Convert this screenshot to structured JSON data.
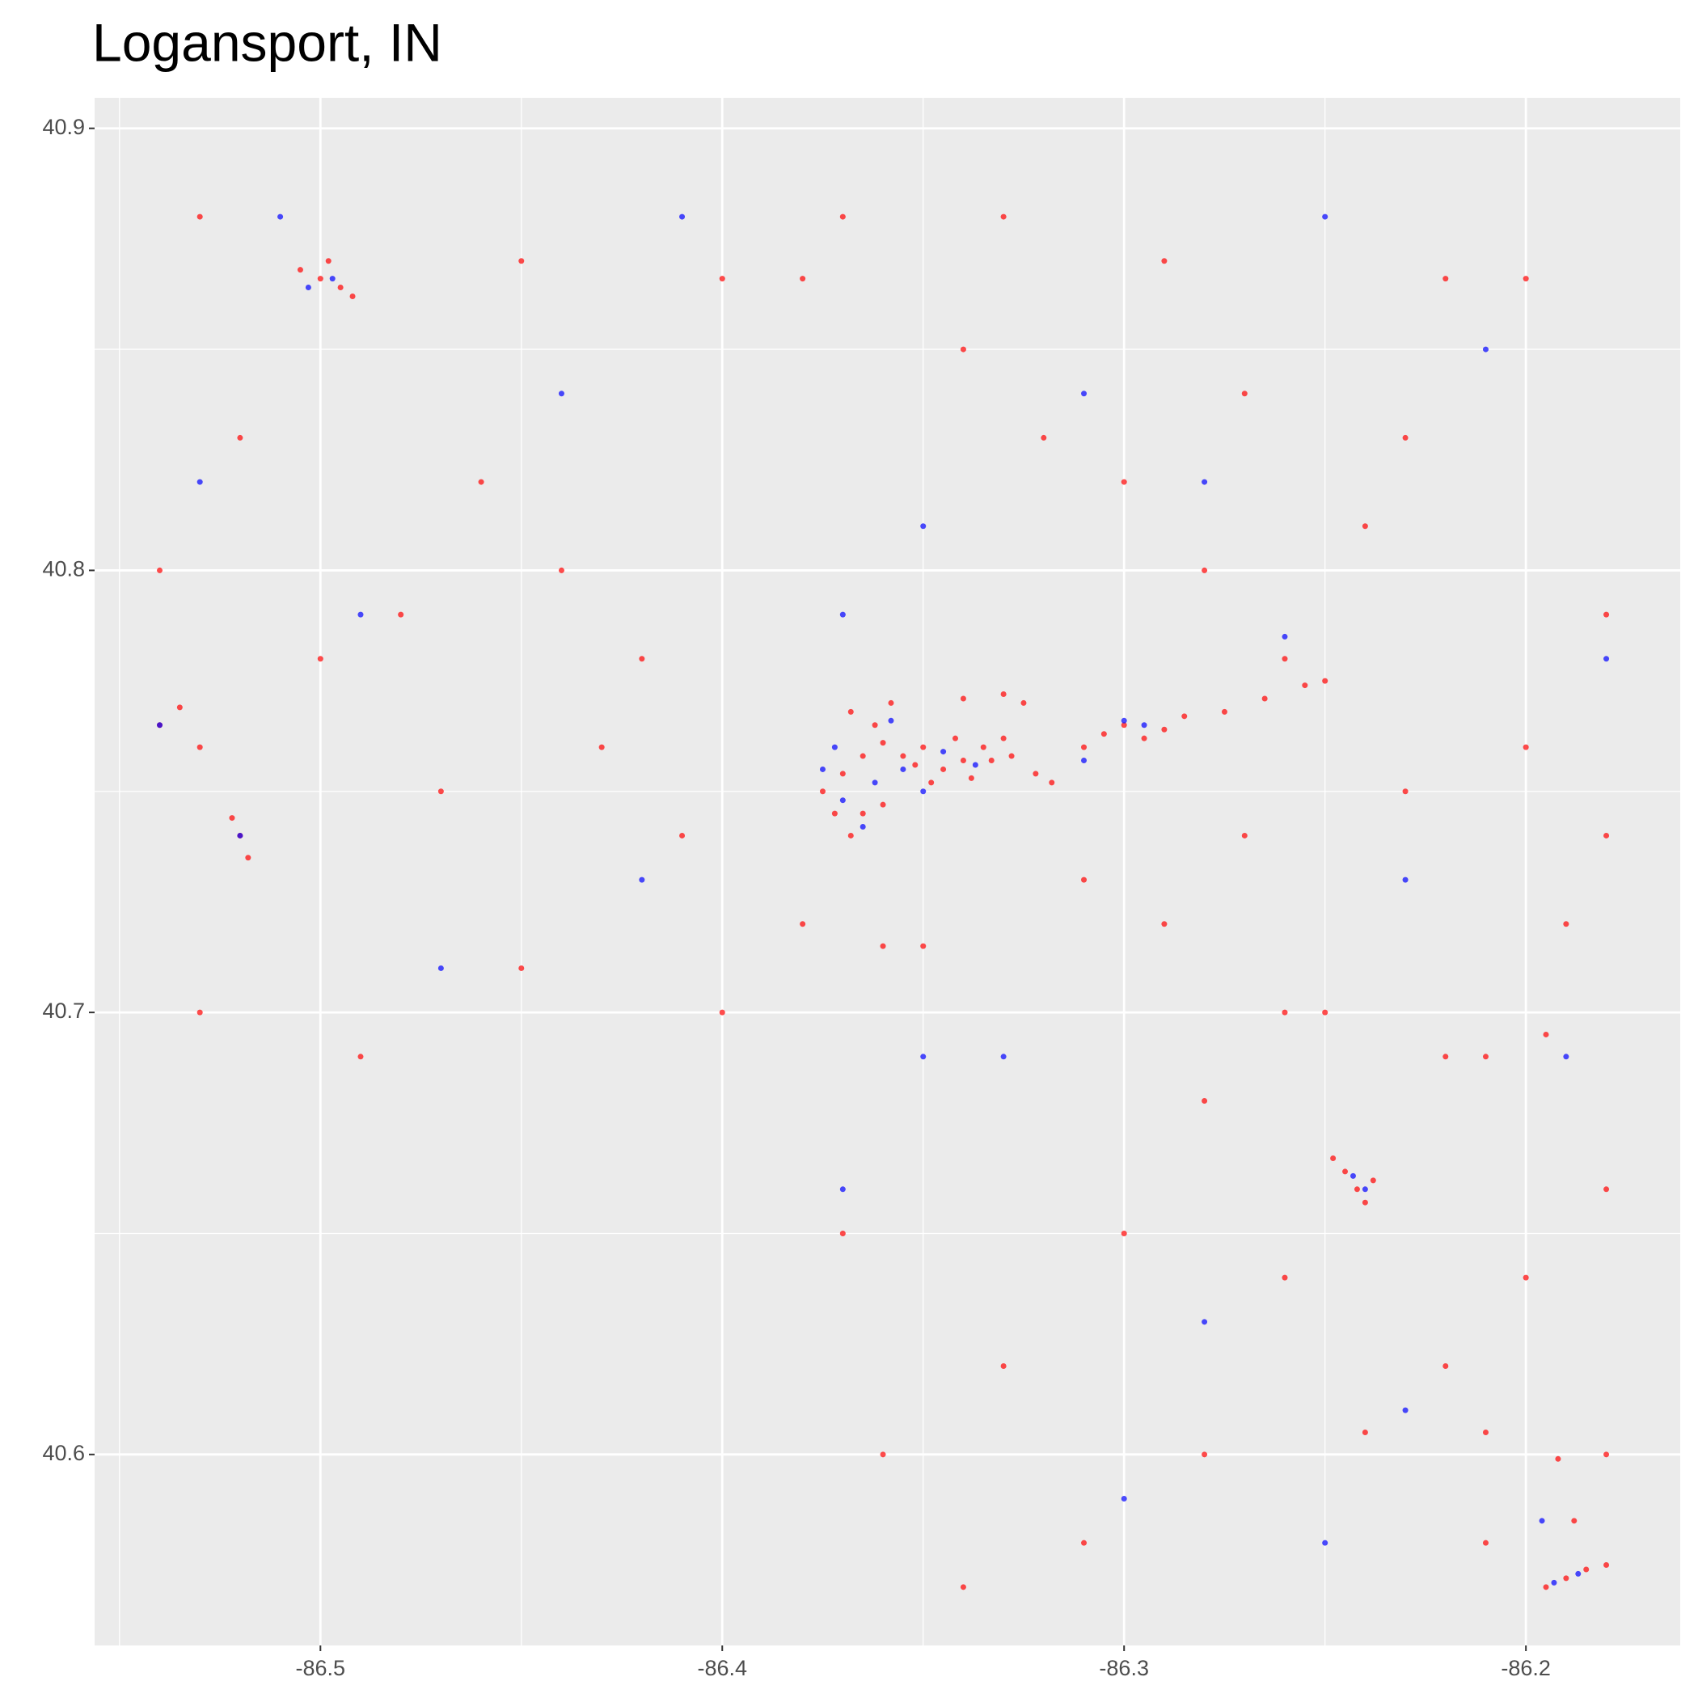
{
  "chart_data": {
    "type": "scatter",
    "title": "Logansport, IN",
    "xlim": [
      -86.5562,
      -86.1616
    ],
    "ylim": [
      40.5568,
      40.9069
    ],
    "xticks": [
      -86.5,
      -86.4,
      -86.3,
      -86.2
    ],
    "yticks": [
      40.6,
      40.7,
      40.8,
      40.9
    ],
    "xminor": [
      -86.55,
      -86.45,
      -86.35,
      -86.25
    ],
    "yminor": [
      40.65,
      40.75,
      40.85
    ],
    "grid": true,
    "series": [
      {
        "color": "#ff0000",
        "x": [
          -86.355,
          -86.35,
          -86.345,
          -86.34,
          -86.335,
          -86.33,
          -86.348,
          -86.342,
          -86.338,
          -86.352,
          -86.333,
          -86.328,
          -86.36,
          -86.365,
          -86.37,
          -86.375,
          -86.372,
          -86.365,
          -86.36,
          -86.368,
          -86.362,
          -86.368,
          -86.358,
          -86.34,
          -86.33,
          -86.325,
          -86.322,
          -86.318,
          -86.305,
          -86.3,
          -86.295,
          -86.29,
          -86.31,
          -86.285,
          -86.275,
          -86.265,
          -86.255,
          -86.25,
          -86.242,
          -86.245,
          -86.24,
          -86.248,
          -86.238,
          -86.5,
          -86.495,
          -86.505,
          -86.498,
          -86.492,
          -86.19,
          -86.185,
          -86.195,
          -86.18,
          -86.188,
          -86.192,
          -86.52,
          -86.518,
          -86.522,
          -86.54,
          -86.535,
          -86.53,
          -86.45,
          -86.44,
          -86.42,
          -86.4,
          -86.38,
          -86.37,
          -86.34,
          -86.32,
          -86.3,
          -86.28,
          -86.26,
          -86.22,
          -86.2,
          -86.23,
          -86.18,
          -86.19,
          -86.21,
          -86.25,
          -86.28,
          -86.3,
          -86.33,
          -86.36,
          -86.37,
          -86.35,
          -86.36,
          -86.38,
          -86.4,
          -86.41,
          -86.43,
          -86.46,
          -86.48,
          -86.5,
          -86.52,
          -86.54,
          -86.53,
          -86.49,
          -86.47,
          -86.26,
          -86.22,
          -86.2,
          -86.18,
          -86.21,
          -86.24,
          -86.28,
          -86.31,
          -86.34,
          -86.29,
          -86.27,
          -86.23,
          -86.2,
          -86.18,
          -86.33,
          -86.29,
          -86.45,
          -86.53,
          -86.27,
          -86.24,
          -86.31,
          -86.26,
          -86.22,
          -86.195,
          -86.21,
          -86.18
        ],
        "y": [
          40.758,
          40.76,
          40.755,
          40.757,
          40.76,
          40.762,
          40.752,
          40.762,
          40.753,
          40.756,
          40.757,
          40.758,
          40.761,
          40.758,
          40.754,
          40.75,
          40.745,
          40.745,
          40.747,
          40.74,
          40.765,
          40.768,
          40.77,
          40.771,
          40.772,
          40.77,
          40.754,
          40.752,
          40.763,
          40.765,
          40.762,
          40.764,
          40.76,
          40.767,
          40.768,
          40.771,
          40.774,
          40.775,
          40.66,
          40.664,
          40.657,
          40.667,
          40.662,
          40.866,
          40.864,
          40.868,
          40.87,
          40.862,
          40.572,
          40.574,
          40.57,
          40.575,
          40.585,
          40.599,
          40.74,
          40.735,
          40.744,
          40.765,
          40.769,
          40.76,
          40.71,
          40.8,
          40.78,
          40.866,
          40.866,
          40.88,
          40.85,
          40.83,
          40.82,
          40.8,
          40.78,
          40.866,
          40.866,
          40.83,
          40.79,
          40.72,
          40.69,
          40.7,
          40.68,
          40.65,
          40.62,
          40.6,
          40.65,
          40.715,
          40.715,
          40.72,
          40.7,
          40.74,
          40.76,
          40.82,
          40.79,
          40.78,
          40.83,
          40.8,
          40.7,
          40.69,
          40.75,
          40.64,
          40.62,
          40.64,
          40.66,
          40.605,
          40.605,
          40.6,
          40.58,
          40.57,
          40.72,
          40.74,
          40.75,
          40.76,
          40.74,
          40.88,
          40.87,
          40.87,
          40.88,
          40.84,
          40.81,
          40.73,
          40.7,
          40.69,
          40.695,
          40.58,
          40.6
        ]
      },
      {
        "color": "#0000ff",
        "x": [
          -86.355,
          -86.345,
          -86.337,
          -86.35,
          -86.362,
          -86.375,
          -86.37,
          -86.365,
          -86.372,
          -86.358,
          -86.3,
          -86.295,
          -86.31,
          -86.243,
          -86.24,
          -86.497,
          -86.503,
          -86.193,
          -86.187,
          -86.196,
          -86.52,
          -86.54,
          -86.53,
          -86.49,
          -86.44,
          -86.41,
          -86.37,
          -86.35,
          -86.31,
          -86.28,
          -86.25,
          -86.21,
          -86.18,
          -86.19,
          -86.23,
          -86.25,
          -86.3,
          -86.37,
          -86.33,
          -86.42,
          -86.47,
          -86.51,
          -86.28,
          -86.23,
          -86.35,
          -86.26
        ],
        "y": [
          40.755,
          40.759,
          40.756,
          40.75,
          40.752,
          40.755,
          40.748,
          40.742,
          40.76,
          40.766,
          40.766,
          40.765,
          40.757,
          40.663,
          40.66,
          40.866,
          40.864,
          40.571,
          40.573,
          40.585,
          40.74,
          40.765,
          40.82,
          40.79,
          40.84,
          40.88,
          40.79,
          40.69,
          40.84,
          40.82,
          40.88,
          40.85,
          40.78,
          40.69,
          40.73,
          40.58,
          40.59,
          40.66,
          40.69,
          40.73,
          40.71,
          40.88,
          40.63,
          40.61,
          40.81,
          40.785
        ]
      }
    ]
  }
}
